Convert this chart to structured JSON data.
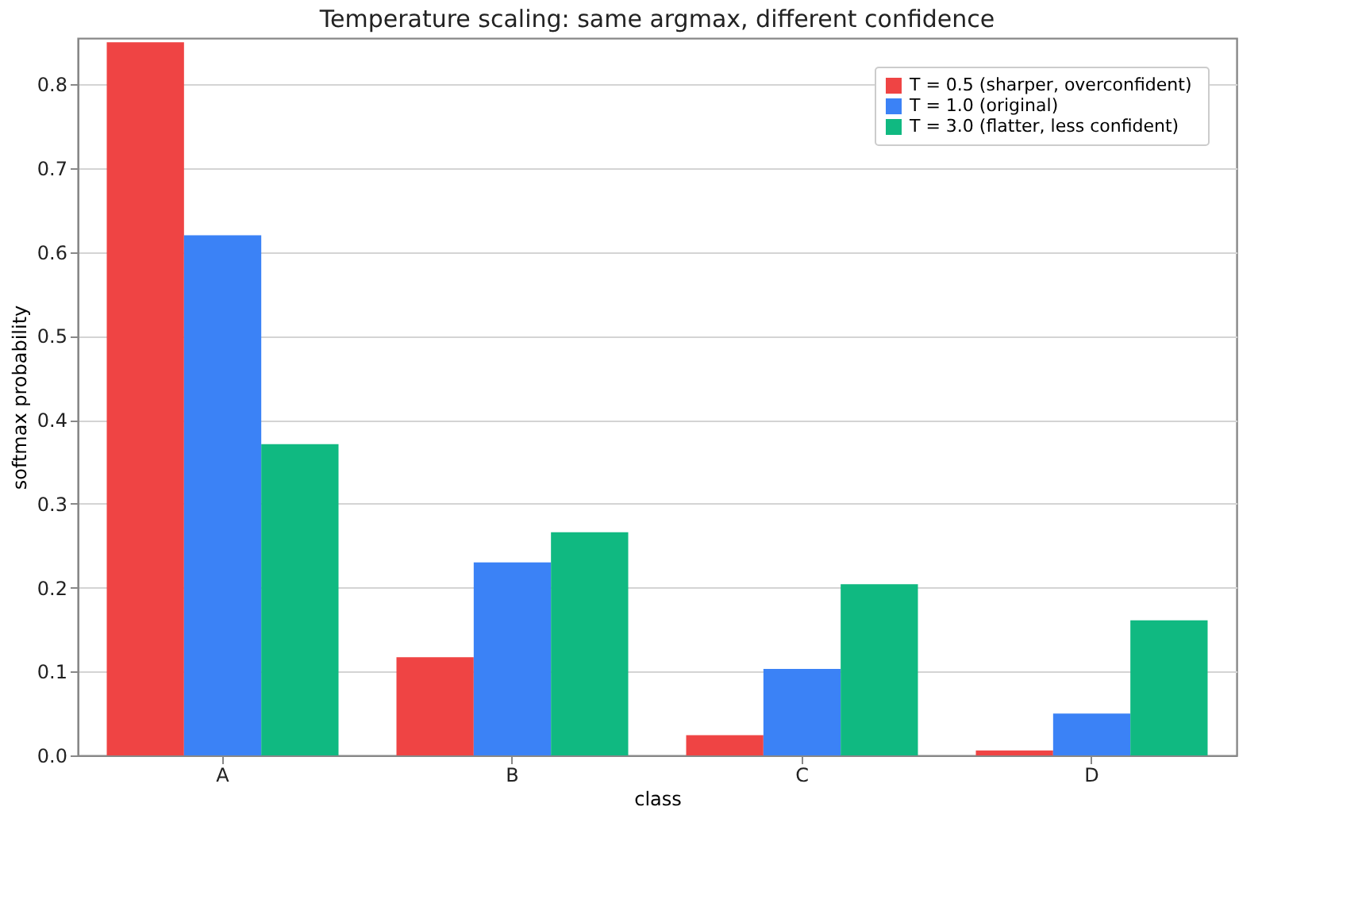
{
  "chart_data": {
    "type": "bar",
    "title": "Temperature scaling: same argmax, different confidence",
    "xlabel": "class",
    "ylabel": "softmax probability",
    "categories": [
      "A",
      "B",
      "C",
      "D"
    ],
    "series": [
      {
        "name": "T = 0.5  (sharper, overconfident)",
        "color": "#ef4444",
        "values": [
          0.85,
          0.117,
          0.024,
          0.006
        ]
      },
      {
        "name": "T = 1.0  (original)",
        "color": "#3b82f6",
        "values": [
          0.62,
          0.23,
          0.103,
          0.05
        ]
      },
      {
        "name": "T = 3.0  (flatter, less confident)",
        "color": "#10b981",
        "values": [
          0.371,
          0.266,
          0.204,
          0.161
        ]
      }
    ],
    "ylim": [
      0,
      0.855
    ],
    "yticks": [
      {
        "value": 0,
        "label": "0.0"
      },
      0.1,
      0.2,
      0.3,
      0.4,
      0.5,
      0.6,
      0.7,
      0.8
    ],
    "grid": "y",
    "legend": "top right"
  }
}
